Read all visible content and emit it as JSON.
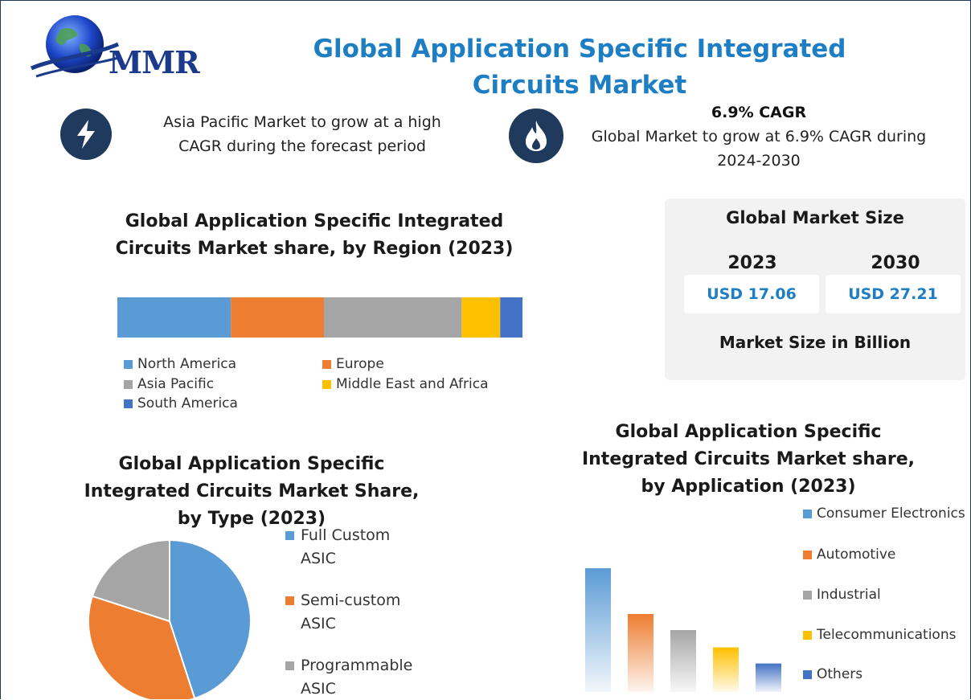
{
  "logo": {
    "text": "MMR"
  },
  "title": "Global Application Specific Integrated Circuits Market",
  "info_left": {
    "icon": "lightning-icon",
    "text_line1": "Asia Pacific Market to grow at a high",
    "text_line2": "CAGR during the forecast period"
  },
  "info_right": {
    "icon": "flame-icon",
    "title": "6.9% CAGR",
    "text_line1": "Global Market to grow at 6.9% CAGR during",
    "text_line2": "2024-2030"
  },
  "market_size": {
    "title": "Global Market Size",
    "year_a": "2023",
    "value_a": "USD 17.06",
    "year_b": "2030",
    "value_b": "USD 27.21",
    "footer": "Market Size in Billion"
  },
  "colors": {
    "blue": "#5b9bd5",
    "orange": "#ed7d31",
    "gray": "#a5a5a5",
    "yellow": "#ffc000",
    "darkblue": "#4472c4",
    "accent": "#1e7ec3",
    "navy": "#1f3a5c"
  },
  "chart_data": [
    {
      "type": "bar",
      "orientation": "horizontal-stacked",
      "title_line1": "Global Application Specific Integrated",
      "title_line2": "Circuits Market share, by Region (2023)",
      "series": [
        {
          "name": "North America",
          "value": 28,
          "color": "#5b9bd5"
        },
        {
          "name": "Europe",
          "value": 23,
          "color": "#ed7d31"
        },
        {
          "name": "Asia Pacific",
          "value": 34,
          "color": "#a5a5a5"
        },
        {
          "name": "Middle East and Africa",
          "value": 9.5,
          "color": "#ffc000"
        },
        {
          "name": "South America",
          "value": 5.5,
          "color": "#4472c4"
        }
      ]
    },
    {
      "type": "pie",
      "title_line1": "Global Application Specific",
      "title_line2": "Integrated Circuits Market Share,",
      "title_line3": "by Type (2023)",
      "slices": [
        {
          "name_line1": "Full Custom",
          "name_line2": "ASIC",
          "value": 45,
          "color": "#5b9bd5"
        },
        {
          "name_line1": "Semi-custom",
          "name_line2": "ASIC",
          "value": 35,
          "color": "#ed7d31"
        },
        {
          "name_line1": "Programmable",
          "name_line2": "ASIC",
          "value": 20,
          "color": "#a5a5a5"
        }
      ]
    },
    {
      "type": "bar",
      "title_line1": "Global Application Specific",
      "title_line2": "Integrated Circuits Market share,",
      "title_line3": "by Application (2023)",
      "categories": [
        "Consumer Electronics",
        "Automotive",
        "Industrial",
        "Telecommunications",
        "Others"
      ],
      "values": [
        100,
        63,
        50,
        36,
        23
      ],
      "colors": [
        "#5b9bd5",
        "#ed7d31",
        "#a5a5a5",
        "#ffc000",
        "#4472c4"
      ]
    }
  ]
}
